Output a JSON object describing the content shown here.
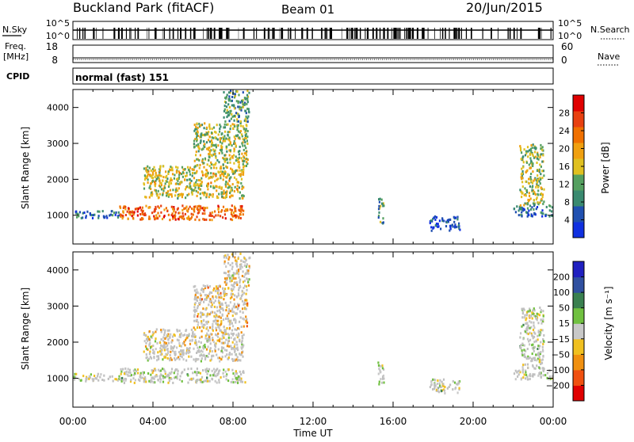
{
  "header": {
    "title": "Buckland Park (fitACF)",
    "beam": "Beam 01",
    "date": "20/Jun/2015"
  },
  "status_panels": {
    "nsky_label": "N.Sky",
    "nsearch_label": "N.Search",
    "nsky_ticks": [
      "10^5",
      "10^0"
    ],
    "nsearch_ticks": [
      "10^5",
      "10^0"
    ],
    "freq_label_1": "Freq.",
    "freq_label_2": "[MHz]",
    "freq_ticks": [
      "18",
      "8"
    ],
    "nave_label": "Nave",
    "nave_ticks": [
      "60",
      "0"
    ],
    "cpid_label": "CPID",
    "cpid_text": "normal (fast) 151"
  },
  "colors": {
    "power": [
      "#1030e0",
      "#2050b0",
      "#3a8a70",
      "#55a060",
      "#e0c020",
      "#f0a010",
      "#f07000",
      "#e84010",
      "#e00000"
    ],
    "velocity": [
      "#2020c0",
      "#3050a0",
      "#3a8050",
      "#70c040",
      "#c8c8c8",
      "#f0c020",
      "#f09010",
      "#f05010",
      "#e00000"
    ],
    "ground_scatter": "#c0c0c0"
  },
  "chart_data": [
    {
      "type": "heatmap",
      "ylabel": "Slant Range [km]",
      "xlabel": "Time UT",
      "x_ticks": [
        "00:00",
        "04:00",
        "08:00",
        "12:00",
        "16:00",
        "20:00",
        "00:00"
      ],
      "y_ticks": [
        "1000",
        "2000",
        "3000",
        "4000"
      ],
      "ylim": [
        200,
        4500
      ],
      "xlim_hours": [
        0,
        24
      ],
      "colorbar_label": "Power [dB]",
      "colorbar_ticks": [
        "4",
        "8",
        "12",
        "16",
        "20",
        "24",
        "28"
      ],
      "colorbar_range": [
        0,
        30
      ],
      "echo_regions": [
        {
          "t0": 0.0,
          "t1": 2.3,
          "r0": 950,
          "r1": 1150,
          "level": 0.22
        },
        {
          "t0": 2.3,
          "t1": 8.6,
          "r0": 900,
          "r1": 1300,
          "level": 0.75
        },
        {
          "t0": 3.5,
          "t1": 8.5,
          "r0": 1500,
          "r1": 2400,
          "level": 0.5
        },
        {
          "t0": 6.0,
          "t1": 8.7,
          "r0": 2400,
          "r1": 3600,
          "level": 0.45
        },
        {
          "t0": 7.5,
          "t1": 8.8,
          "r0": 3600,
          "r1": 4500,
          "level": 0.35
        },
        {
          "t0": 15.2,
          "t1": 15.5,
          "r0": 800,
          "r1": 1500,
          "level": 0.3
        },
        {
          "t0": 17.8,
          "t1": 19.3,
          "r0": 600,
          "r1": 1000,
          "level": 0.15
        },
        {
          "t0": 22.0,
          "t1": 24.0,
          "r0": 1000,
          "r1": 1300,
          "level": 0.2
        },
        {
          "t0": 22.3,
          "t1": 23.5,
          "r0": 1300,
          "r1": 3000,
          "level": 0.45
        }
      ]
    },
    {
      "type": "heatmap",
      "ylabel": "Slant Range [km]",
      "xlabel": "Time UT",
      "x_ticks": [
        "00:00",
        "04:00",
        "08:00",
        "12:00",
        "16:00",
        "20:00",
        "00:00"
      ],
      "y_ticks": [
        "1000",
        "2000",
        "3000",
        "4000"
      ],
      "ylim": [
        200,
        4500
      ],
      "xlim_hours": [
        0,
        24
      ],
      "colorbar_label": "Velocity [m s⁻¹]",
      "colorbar_ticks": [
        "200",
        "100",
        "50",
        "15",
        "−15",
        "−50",
        "−100",
        "−200"
      ],
      "colorbar_range": [
        -250,
        250
      ],
      "echo_regions": [
        {
          "t0": 0.0,
          "t1": 2.3,
          "r0": 950,
          "r1": 1150,
          "level": 0.5
        },
        {
          "t0": 2.3,
          "t1": 8.6,
          "r0": 900,
          "r1": 1300,
          "level": 0.5
        },
        {
          "t0": 3.5,
          "t1": 8.5,
          "r0": 1500,
          "r1": 2400,
          "level": 0.58
        },
        {
          "t0": 6.0,
          "t1": 8.7,
          "r0": 2400,
          "r1": 3600,
          "level": 0.62
        },
        {
          "t0": 7.5,
          "t1": 8.8,
          "r0": 3600,
          "r1": 4500,
          "level": 0.6
        },
        {
          "t0": 15.2,
          "t1": 15.5,
          "r0": 800,
          "r1": 1500,
          "level": 0.5
        },
        {
          "t0": 17.8,
          "t1": 19.3,
          "r0": 600,
          "r1": 1000,
          "level": 0.5
        },
        {
          "t0": 22.0,
          "t1": 24.0,
          "r0": 1000,
          "r1": 1300,
          "level": 0.5
        },
        {
          "t0": 22.3,
          "t1": 23.5,
          "r0": 1300,
          "r1": 3000,
          "level": 0.5
        }
      ]
    }
  ]
}
